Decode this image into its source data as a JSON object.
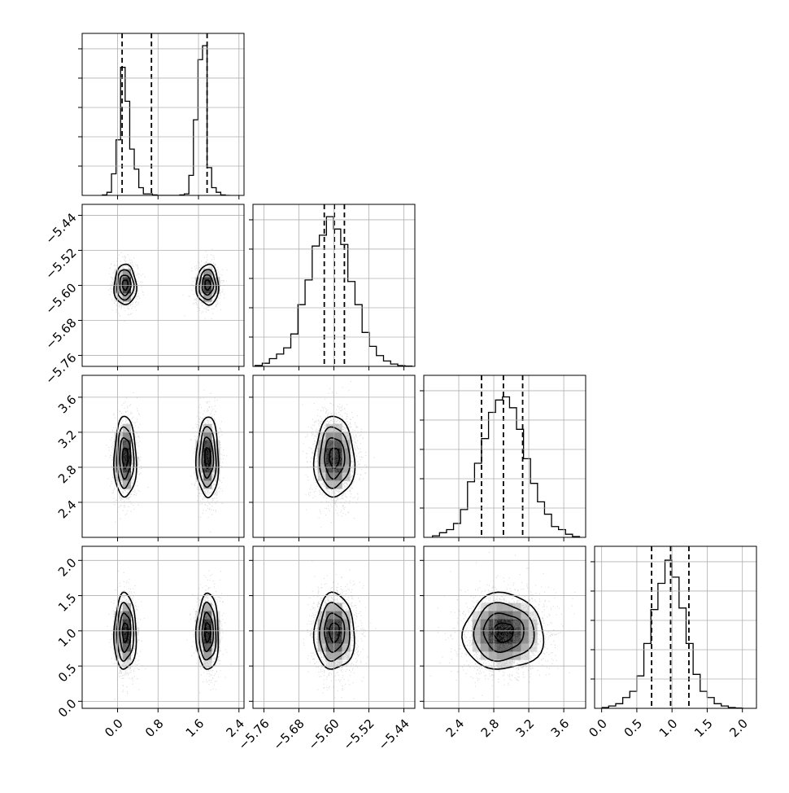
{
  "chart_data": {
    "type": "corner",
    "variables": [
      {
        "range": [
          -0.7,
          2.5
        ],
        "ticks": [
          0.0,
          0.8,
          1.6,
          2.4
        ],
        "tick_labels": [
          "0.0",
          "0.8",
          "1.6",
          "2.4"
        ],
        "quantiles": [
          0.09,
          0.67,
          1.77
        ],
        "hist": {
          "edges": [
            -0.3,
            -0.21,
            -0.12,
            -0.03,
            0.06,
            0.15,
            0.24,
            0.33,
            0.42,
            0.51,
            0.6,
            0.69,
            0.78,
            0.87,
            0.96,
            1.05,
            1.14,
            1.23,
            1.32,
            1.41,
            1.5,
            1.59,
            1.68,
            1.77,
            1.86,
            1.95,
            2.04,
            2.13,
            2.22
          ],
          "counts": [
            0.003,
            0.02,
            0.14,
            0.36,
            0.83,
            0.61,
            0.3,
            0.17,
            0.05,
            0.01,
            0.01,
            0.003,
            0,
            0,
            0,
            0,
            0,
            0.003,
            0.01,
            0.13,
            0.49,
            0.88,
            0.97,
            0.18,
            0.05,
            0.02,
            0.003,
            0
          ]
        },
        "modes": [
          {
            "center": 0.15,
            "sd": 0.11
          },
          {
            "center": 1.78,
            "sd": 0.11
          }
        ]
      },
      {
        "range": [
          -5.785,
          -5.415
        ],
        "ticks": [
          -5.76,
          -5.68,
          -5.6,
          -5.52,
          -5.44
        ],
        "tick_labels": [
          "−5.76",
          "−5.68",
          "−5.60",
          "−5.52",
          "−5.44"
        ],
        "quantiles": [
          -5.622,
          -5.599,
          -5.576
        ],
        "center": -5.599,
        "sd": 0.023,
        "hist": {
          "edges": [
            -5.78,
            -5.7637,
            -5.7474,
            -5.7311,
            -5.7148,
            -5.6985,
            -5.6822,
            -5.6659,
            -5.6496,
            -5.6333,
            -5.617,
            -5.6007,
            -5.5844,
            -5.5681,
            -5.5518,
            -5.5355,
            -5.5192,
            -5.5029,
            -5.4866,
            -5.4703,
            -5.454,
            -5.4377,
            -5.4214
          ],
          "counts": [
            0.006,
            0.02,
            0.05,
            0.08,
            0.12,
            0.21,
            0.4,
            0.56,
            0.78,
            0.85,
            0.97,
            0.89,
            0.79,
            0.55,
            0.4,
            0.22,
            0.13,
            0.07,
            0.035,
            0.015,
            0.005,
            0.002
          ]
        }
      },
      {
        "range": [
          2.0,
          3.85
        ],
        "ticks": [
          2.4,
          2.8,
          3.2,
          3.6
        ],
        "tick_labels": [
          "2.4",
          "2.8",
          "3.2",
          "3.6"
        ],
        "quantiles": [
          2.66,
          2.91,
          3.13
        ],
        "center": 2.91,
        "sd": 0.23,
        "hist": {
          "edges": [
            2.1,
            2.18,
            2.26,
            2.34,
            2.42,
            2.5,
            2.58,
            2.66,
            2.74,
            2.82,
            2.9,
            2.98,
            3.06,
            3.14,
            3.22,
            3.3,
            3.38,
            3.46,
            3.54,
            3.62,
            3.7,
            3.78
          ],
          "counts": [
            0.01,
            0.03,
            0.05,
            0.09,
            0.18,
            0.36,
            0.48,
            0.64,
            0.81,
            0.89,
            0.91,
            0.84,
            0.7,
            0.51,
            0.35,
            0.23,
            0.15,
            0.07,
            0.05,
            0.02,
            0.005
          ]
        }
      },
      {
        "range": [
          -0.1,
          2.2
        ],
        "ticks": [
          0.0,
          0.5,
          1.0,
          1.5,
          2.0
        ],
        "tick_labels": [
          "0.0",
          "0.5",
          "1.0",
          "1.5",
          "2.0"
        ],
        "quantiles": [
          0.71,
          0.98,
          1.24
        ],
        "center": 0.98,
        "sd": 0.27,
        "hist": {
          "edges": [
            0.0,
            0.1,
            0.2,
            0.3,
            0.4,
            0.5,
            0.6,
            0.7,
            0.8,
            0.9,
            1.0,
            1.1,
            1.2,
            1.3,
            1.4,
            1.5,
            1.6,
            1.7,
            1.8,
            1.9,
            2.0
          ],
          "counts": [
            0.005,
            0.015,
            0.03,
            0.07,
            0.11,
            0.21,
            0.42,
            0.64,
            0.81,
            0.96,
            0.85,
            0.65,
            0.42,
            0.22,
            0.11,
            0.07,
            0.03,
            0.015,
            0.005,
            0.002
          ]
        }
      }
    ],
    "hist_ylim": [
      0,
      1.05
    ],
    "grid": true
  }
}
